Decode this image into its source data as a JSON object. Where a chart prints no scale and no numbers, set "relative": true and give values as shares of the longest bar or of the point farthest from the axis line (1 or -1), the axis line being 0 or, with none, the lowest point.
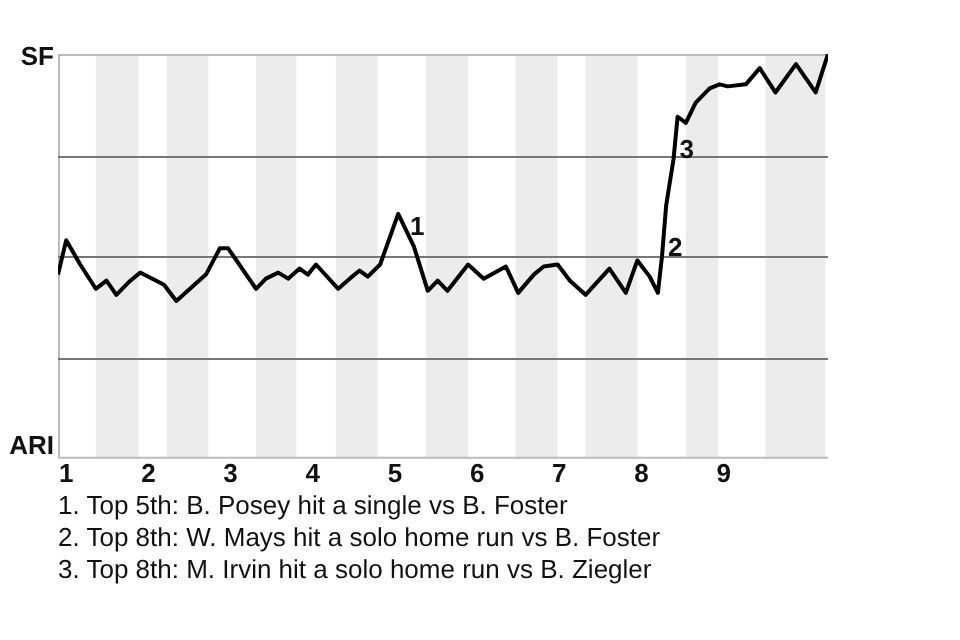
{
  "chart_data": {
    "type": "line",
    "relative": true,
    "x": [
      0.9,
      1.0,
      1.17,
      1.36,
      1.49,
      1.61,
      1.78,
      1.9,
      2.19,
      2.34,
      2.56,
      2.7,
      2.87,
      2.97,
      3.31,
      3.43,
      3.58,
      3.7,
      3.84,
      3.94,
      4.04,
      4.31,
      4.45,
      4.57,
      4.67,
      4.82,
      5.04,
      5.23,
      5.4,
      5.52,
      5.64,
      5.89,
      6.08,
      6.35,
      6.5,
      6.69,
      6.81,
      6.98,
      7.13,
      7.32,
      7.61,
      7.81,
      7.95,
      8.1,
      8.2,
      8.25,
      8.3,
      8.39,
      8.44,
      8.54,
      8.66,
      8.83,
      8.95,
      9.05,
      9.27,
      9.44,
      9.63,
      9.88,
      10.12,
      10.27
    ],
    "series": [
      {
        "color": "#000000",
        "values": [
          0.455,
          0.54,
          0.48,
          0.42,
          0.44,
          0.405,
          0.44,
          0.46,
          0.43,
          0.39,
          0.43,
          0.455,
          0.52,
          0.52,
          0.42,
          0.445,
          0.46,
          0.445,
          0.47,
          0.455,
          0.48,
          0.42,
          0.445,
          0.465,
          0.45,
          0.48,
          0.605,
          0.525,
          0.415,
          0.44,
          0.415,
          0.48,
          0.445,
          0.475,
          0.41,
          0.455,
          0.475,
          0.48,
          0.44,
          0.405,
          0.47,
          0.41,
          0.49,
          0.45,
          0.41,
          0.5,
          0.625,
          0.74,
          0.845,
          0.83,
          0.88,
          0.915,
          0.925,
          0.92,
          0.925,
          0.965,
          0.905,
          0.975,
          0.905,
          1
        ]
      }
    ],
    "xlim": [
      0.9,
      10.27
    ],
    "xticks": [
      1,
      2,
      3,
      4,
      5,
      6,
      7,
      8,
      9
    ],
    "marker": "none",
    "line_style": "solid",
    "ref_lines": [
      {
        "axis": "y",
        "value": 0.25,
        "color": "#777777"
      },
      {
        "axis": "y",
        "value": 0.5,
        "color": "#777777"
      },
      {
        "axis": "y",
        "value": 0.75,
        "color": "#777777"
      }
    ],
    "bands": [
      {
        "axis": "x",
        "from": 1.36,
        "to": 1.88,
        "color": "#ececec"
      },
      {
        "axis": "x",
        "from": 2.22,
        "to": 2.73,
        "color": "#ececec"
      },
      {
        "axis": "x",
        "from": 3.31,
        "to": 3.8,
        "color": "#ececec"
      },
      {
        "axis": "x",
        "from": 4.28,
        "to": 4.79,
        "color": "#ececec"
      },
      {
        "axis": "x",
        "from": 5.38,
        "to": 5.89,
        "color": "#ececec"
      },
      {
        "axis": "x",
        "from": 6.47,
        "to": 6.98,
        "color": "#ececec"
      },
      {
        "axis": "x",
        "from": 7.32,
        "to": 7.95,
        "color": "#ececec"
      },
      {
        "axis": "x",
        "from": 8.54,
        "to": 8.93,
        "color": "#ececec"
      },
      {
        "axis": "x",
        "from": 9.51,
        "to": 10.24,
        "color": "#ececec"
      }
    ],
    "annotations": [
      "SF",
      "ARI",
      {
        "text": "1",
        "x": 5.11,
        "y": 0.55
      },
      {
        "text": "2",
        "x": 8.25,
        "y": 0.5
      },
      {
        "text": "3",
        "x": 8.39,
        "y": 0.74
      },
      "1. Top 5th: B. Posey hit a single vs B. Foster",
      "2. Top 8th: W. Mays hit a solo home run vs B. Foster",
      "3. Top 8th: M. Irvin hit a solo home run vs B. Ziegler"
    ]
  }
}
